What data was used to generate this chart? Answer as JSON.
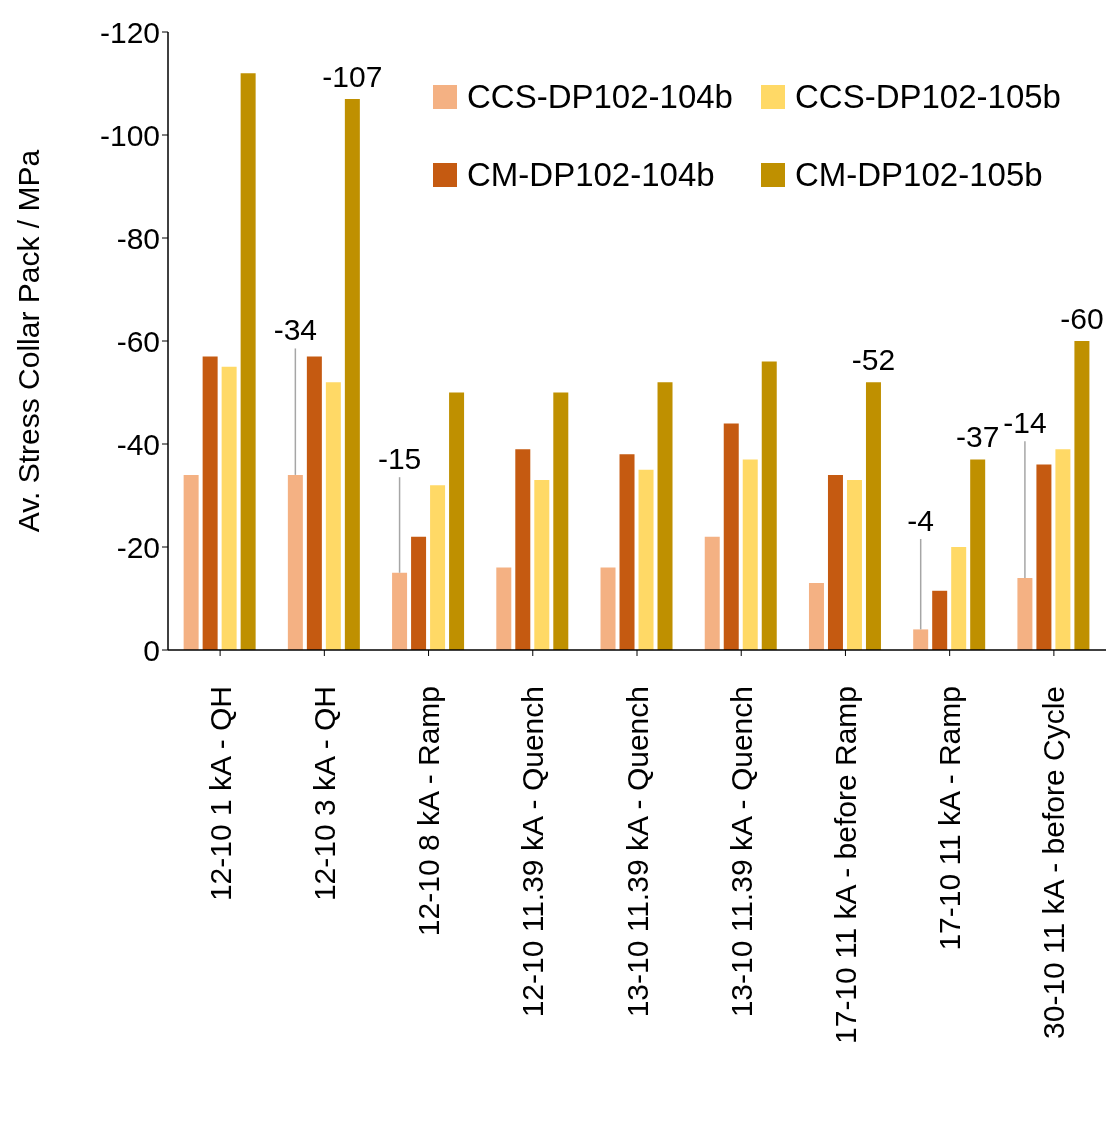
{
  "chart_data": {
    "type": "bar",
    "ylabel": "Av. Stress Collar Pack / MPa",
    "categories": [
      "12-10 1 kA - QH",
      "12-10 3 kA - QH",
      "12-10 8 kA - Ramp",
      "12-10 11.39 kA - Quench",
      "13-10 11.39 kA - Quench",
      "13-10 11.39 kA - Quench",
      "17-10 11 kA - before Ramp",
      "17-10 11 kA - Ramp",
      "30-10 11 kA - before Cycle"
    ],
    "series": [
      {
        "name": "CCS-DP102-104b",
        "color": "#f4b183",
        "values": [
          -34,
          -34,
          -15,
          -16,
          -16,
          -22,
          -13,
          -4,
          -14
        ],
        "value_labels": [
          null,
          "-34",
          "-15",
          null,
          null,
          null,
          null,
          "-4",
          "-14"
        ]
      },
      {
        "name": "CM-DP102-104b",
        "color": "#c55a11",
        "values": [
          -57,
          -57,
          -22,
          -39,
          -38,
          -44,
          -34,
          -11.5,
          -36
        ]
      },
      {
        "name": "CCS-DP102-105b",
        "color": "#ffd966",
        "values": [
          -55,
          -52,
          -32,
          -33,
          -35,
          -37,
          -33,
          -20,
          -39
        ]
      },
      {
        "name": "CM-DP102-105b",
        "color": "#bf9000",
        "values": [
          -112,
          -107,
          -50,
          -50,
          -52,
          -56,
          -52,
          -37,
          -60
        ],
        "value_labels": [
          null,
          "-107",
          null,
          null,
          null,
          null,
          "-52",
          "-37",
          "-60"
        ]
      }
    ],
    "ylim": [
      0,
      -120
    ],
    "yticks": [
      0,
      -20,
      -40,
      -60,
      -80,
      -100,
      -120
    ],
    "grid": false,
    "legend": "top right"
  }
}
